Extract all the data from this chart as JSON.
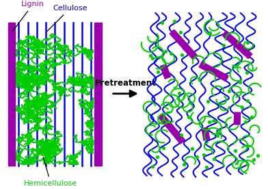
{
  "lignin_color": "#9900AA",
  "cellulose_color": "#0000EE",
  "hemicellulose_color": "#00CC00",
  "background_color": "#FFFFFF",
  "arrow_color": "#000000",
  "title_arrow": "Pretreatment",
  "label_lignin": "Lignin",
  "label_cellulose": "Cellulose",
  "label_hemicellulose": "Hemicellulose",
  "fig_width": 3.92,
  "fig_height": 2.76
}
